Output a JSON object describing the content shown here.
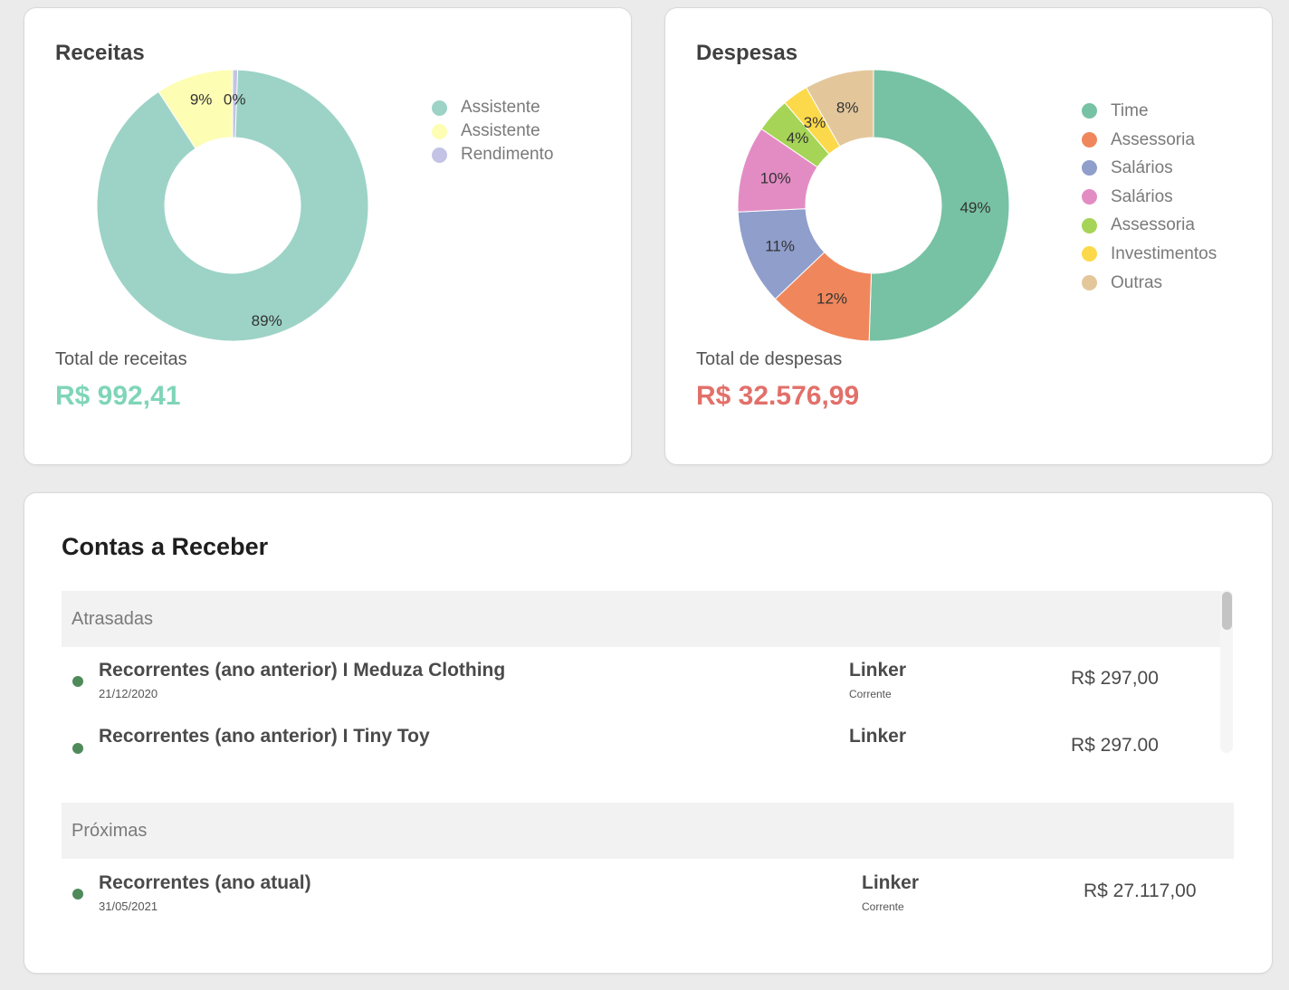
{
  "receitas": {
    "title": "Receitas",
    "total_label": "Total de receitas",
    "total_value": "R$ 992,41",
    "total_color": "#7fd5b8",
    "legend": [
      {
        "label": "Assistente",
        "color": "#9cd3c6"
      },
      {
        "label": "Assistente",
        "color": "#fdfdb4"
      },
      {
        "label": "Rendimento",
        "color": "#c3c3e6"
      }
    ]
  },
  "despesas": {
    "title": "Despesas",
    "total_label": "Total de despesas",
    "total_value": "R$ 32.576,99",
    "total_color": "#e2706a",
    "legend": [
      {
        "label": "Time",
        "color": "#77c2a4"
      },
      {
        "label": "Assessoria",
        "color": "#f0875c"
      },
      {
        "label": "Salários",
        "color": "#8f9ecb"
      },
      {
        "label": "Salários",
        "color": "#e38cc4"
      },
      {
        "label": "Assessoria",
        "color": "#a6d456"
      },
      {
        "label": "Investimentos",
        "color": "#fcd94a"
      },
      {
        "label": "Outras",
        "color": "#e3c79b"
      }
    ]
  },
  "chart_data": [
    {
      "type": "pie",
      "title": "Receitas",
      "categories": [
        "Assistente",
        "Assistente",
        "Rendimento"
      ],
      "values": [
        89,
        9,
        0
      ],
      "labels": [
        "89%",
        "9%",
        "0%"
      ],
      "colors": [
        "#9cd3c6",
        "#fdfdb4",
        "#c3c3e6"
      ],
      "legend_position": "right"
    },
    {
      "type": "pie",
      "title": "Despesas",
      "categories": [
        "Time",
        "Assessoria",
        "Salários",
        "Salários",
        "Assessoria",
        "Investimentos",
        "Outras"
      ],
      "values": [
        49,
        12,
        11,
        10,
        4,
        3,
        8
      ],
      "labels": [
        "49%",
        "12%",
        "11%",
        "10%",
        "4%",
        "3%",
        "8%"
      ],
      "colors": [
        "#77c2a4",
        "#f0875c",
        "#8f9ecb",
        "#e38cc4",
        "#a6d456",
        "#fcd94a",
        "#e3c79b"
      ],
      "legend_position": "right"
    }
  ],
  "contas": {
    "title": "Contas a Receber",
    "status_color": "#4f8a5b",
    "atrasadas": {
      "label": "Atrasadas",
      "rows": [
        {
          "title": "Recorrentes (ano anterior) I Meduza Clothing",
          "date": "21/12/2020",
          "account": "Linker",
          "account_type": "Corrente",
          "amount": "R$ 297,00"
        },
        {
          "title": "Recorrentes (ano anterior) I Tiny Toy",
          "account": "Linker",
          "amount": "R$ 297.00"
        }
      ]
    },
    "proximas": {
      "label": "Próximas",
      "rows": [
        {
          "title": "Recorrentes (ano atual)",
          "date": "31/05/2021",
          "account": "Linker",
          "account_type": "Corrente",
          "amount": "R$ 27.117,00"
        }
      ]
    }
  }
}
